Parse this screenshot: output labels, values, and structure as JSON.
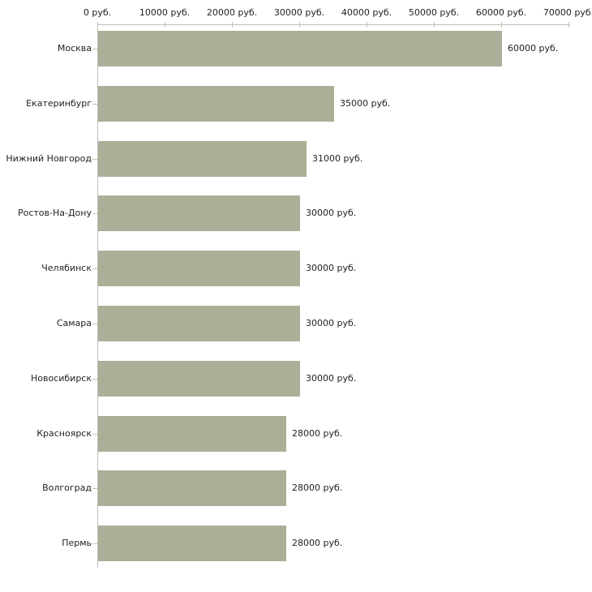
{
  "chart_data": {
    "type": "bar",
    "orientation": "horizontal",
    "title": "",
    "categories": [
      "Москва",
      "Екатеринбург",
      "Нижний Новгород",
      "Ростов-На-Дону",
      "Челябинск",
      "Самара",
      "Новосибирск",
      "Красноярск",
      "Волгоград",
      "Пермь"
    ],
    "values": [
      60000,
      35000,
      31000,
      30000,
      30000,
      30000,
      30000,
      28000,
      28000,
      28000
    ],
    "value_labels": [
      "60000 руб.",
      "35000 руб.",
      "31000 руб.",
      "30000 руб.",
      "30000 руб.",
      "30000 руб.",
      "30000 руб.",
      "28000 руб.",
      "28000 руб.",
      "28000 руб."
    ],
    "unit": "руб.",
    "x_axis": {
      "position": "top",
      "xlim": [
        0,
        70000
      ],
      "tick_values": [
        0,
        10000,
        20000,
        30000,
        40000,
        50000,
        60000,
        70000
      ],
      "tick_labels": [
        "0 руб.",
        "10000 руб.",
        "20000 руб.",
        "30000 руб.",
        "40000 руб.",
        "50000 руб.",
        "60000 руб.",
        "70000 руб."
      ]
    },
    "grid": false,
    "legend": false,
    "colors": {
      "bar": "#abaf98",
      "axis_line": "#bdbdbd",
      "tick_mark": "#c6c69e",
      "text": "#1f1f1f",
      "background": "#ffffff"
    }
  }
}
